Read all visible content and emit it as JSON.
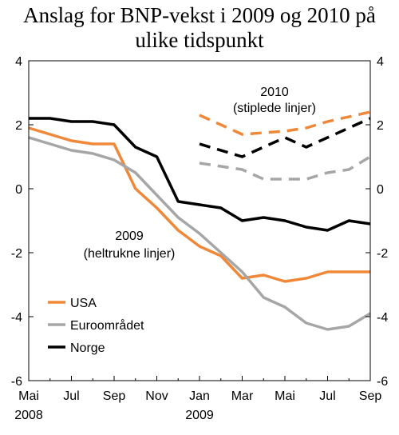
{
  "title_line1": "Anslag for BNP-vekst i 2009 og 2010 på",
  "title_line2": "ulike tidspunkt",
  "chart_data": {
    "type": "line",
    "title": "Anslag for BNP-vekst i 2009 og 2010 på ulike tidspunkt",
    "ylim": [
      -6,
      4
    ],
    "y_ticks": [
      "4",
      "2",
      "0",
      "-2",
      "-4",
      "-6"
    ],
    "x_ticks": [
      "Mai",
      "Jul",
      "Sep",
      "Nov",
      "Jan",
      "Mar",
      "Mai",
      "Jul",
      "Sep"
    ],
    "x_year_labels": [
      "2008",
      "2009"
    ],
    "x_months": [
      "2008-05",
      "2008-06",
      "2008-07",
      "2008-08",
      "2008-09",
      "2008-10",
      "2008-11",
      "2008-12",
      "2009-01",
      "2009-02",
      "2009-03",
      "2009-04",
      "2009-05",
      "2009-06",
      "2009-07",
      "2009-08",
      "2009-09"
    ],
    "annotation_2010": [
      "2010",
      "(stiplede linjer)"
    ],
    "annotation_2009": [
      "2009",
      "(heltrukne linjer)"
    ],
    "legend": [
      "USA",
      "Euroområdet",
      "Norge"
    ],
    "colors": {
      "USA": "#f0883a",
      "Euroområdet": "#a6a6a6",
      "Norge": "#000000"
    },
    "series": [
      {
        "name": "USA",
        "year": "2009",
        "style": "solid",
        "x": [
          "2008-05",
          "2008-06",
          "2008-07",
          "2008-08",
          "2008-09",
          "2008-10",
          "2008-11",
          "2008-12",
          "2009-01",
          "2009-02",
          "2009-03",
          "2009-04",
          "2009-05",
          "2009-06",
          "2009-07",
          "2009-08",
          "2009-09"
        ],
        "values": [
          1.9,
          1.7,
          1.5,
          1.4,
          1.4,
          0.0,
          -0.6,
          -1.3,
          -1.8,
          -2.1,
          -2.8,
          -2.7,
          -2.9,
          -2.8,
          -2.6,
          -2.6,
          -2.6
        ]
      },
      {
        "name": "Euroområdet",
        "year": "2009",
        "style": "solid",
        "x": [
          "2008-05",
          "2008-06",
          "2008-07",
          "2008-08",
          "2008-09",
          "2008-10",
          "2008-11",
          "2008-12",
          "2009-01",
          "2009-02",
          "2009-03",
          "2009-04",
          "2009-05",
          "2009-06",
          "2009-07",
          "2009-08",
          "2009-09"
        ],
        "values": [
          1.6,
          1.4,
          1.2,
          1.1,
          0.9,
          0.5,
          -0.2,
          -0.9,
          -1.4,
          -2.0,
          -2.6,
          -3.4,
          -3.7,
          -4.2,
          -4.4,
          -4.3,
          -3.9
        ]
      },
      {
        "name": "Norge",
        "year": "2009",
        "style": "solid",
        "x": [
          "2008-05",
          "2008-06",
          "2008-07",
          "2008-08",
          "2008-09",
          "2008-10",
          "2008-11",
          "2008-12",
          "2009-01",
          "2009-02",
          "2009-03",
          "2009-04",
          "2009-05",
          "2009-06",
          "2009-07",
          "2009-08",
          "2009-09"
        ],
        "values": [
          2.2,
          2.2,
          2.1,
          2.1,
          2.0,
          1.3,
          1.0,
          -0.4,
          -0.5,
          -0.6,
          -1.0,
          -0.9,
          -1.0,
          -1.2,
          -1.3,
          -1.0,
          -1.1
        ]
      },
      {
        "name": "USA",
        "year": "2010",
        "style": "dashed",
        "x": [
          "2009-01",
          "2009-03",
          "2009-05",
          "2009-06",
          "2009-07",
          "2009-09"
        ],
        "values": [
          2.3,
          1.7,
          1.8,
          1.9,
          2.1,
          2.4
        ]
      },
      {
        "name": "Euroområdet",
        "year": "2010",
        "style": "dashed",
        "x": [
          "2009-01",
          "2009-03",
          "2009-04",
          "2009-06",
          "2009-07",
          "2009-08",
          "2009-09"
        ],
        "values": [
          0.8,
          0.6,
          0.3,
          0.3,
          0.5,
          0.6,
          1.0
        ]
      },
      {
        "name": "Norge",
        "year": "2010",
        "style": "dashed",
        "x": [
          "2009-01",
          "2009-03",
          "2009-05",
          "2009-06",
          "2009-07",
          "2009-09"
        ],
        "values": [
          1.4,
          1.0,
          1.6,
          1.3,
          1.6,
          2.2
        ]
      }
    ]
  }
}
